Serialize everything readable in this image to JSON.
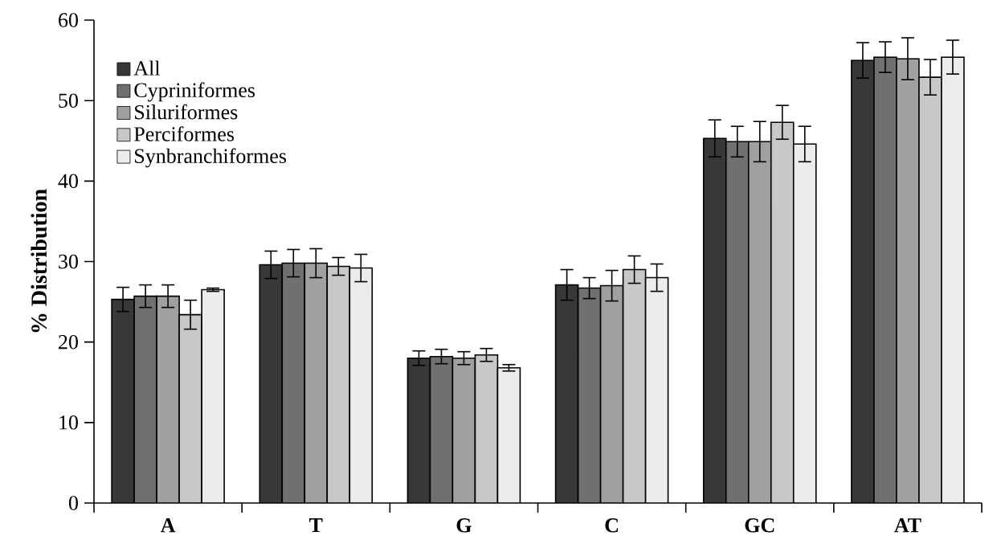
{
  "chart_data": {
    "type": "bar",
    "ylabel": "% Distribution",
    "categories": [
      "A",
      "T",
      "G",
      "C",
      "GC",
      "AT"
    ],
    "series": [
      {
        "name": "All",
        "color": "#383838",
        "values": [
          25.3,
          29.6,
          18.0,
          27.1,
          45.3,
          55.0
        ],
        "errors": [
          1.5,
          1.7,
          0.9,
          1.9,
          2.3,
          2.2
        ]
      },
      {
        "name": "Cypriniformes",
        "color": "#707070",
        "values": [
          25.7,
          29.8,
          18.2,
          26.7,
          44.9,
          55.4
        ],
        "errors": [
          1.4,
          1.7,
          0.9,
          1.3,
          1.9,
          1.9
        ]
      },
      {
        "name": "Siluriformes",
        "color": "#a0a0a0",
        "values": [
          25.7,
          29.8,
          18.0,
          27.0,
          44.9,
          55.2
        ],
        "errors": [
          1.4,
          1.8,
          0.8,
          1.9,
          2.5,
          2.6
        ]
      },
      {
        "name": "Perciformes",
        "color": "#c8c8c8",
        "values": [
          23.4,
          29.4,
          18.4,
          29.0,
          47.3,
          52.9
        ],
        "errors": [
          1.8,
          1.1,
          0.8,
          1.7,
          2.1,
          2.2
        ]
      },
      {
        "name": "Synbranchiformes",
        "color": "#ececec",
        "values": [
          26.5,
          29.2,
          16.8,
          28.0,
          44.6,
          55.4
        ],
        "errors": [
          0.2,
          1.7,
          0.4,
          1.7,
          2.2,
          2.1
        ]
      }
    ],
    "ylim": [
      0,
      60
    ],
    "yticks": [
      0,
      10,
      20,
      30,
      40,
      50,
      60
    ],
    "legend": "top left",
    "grid": false
  }
}
